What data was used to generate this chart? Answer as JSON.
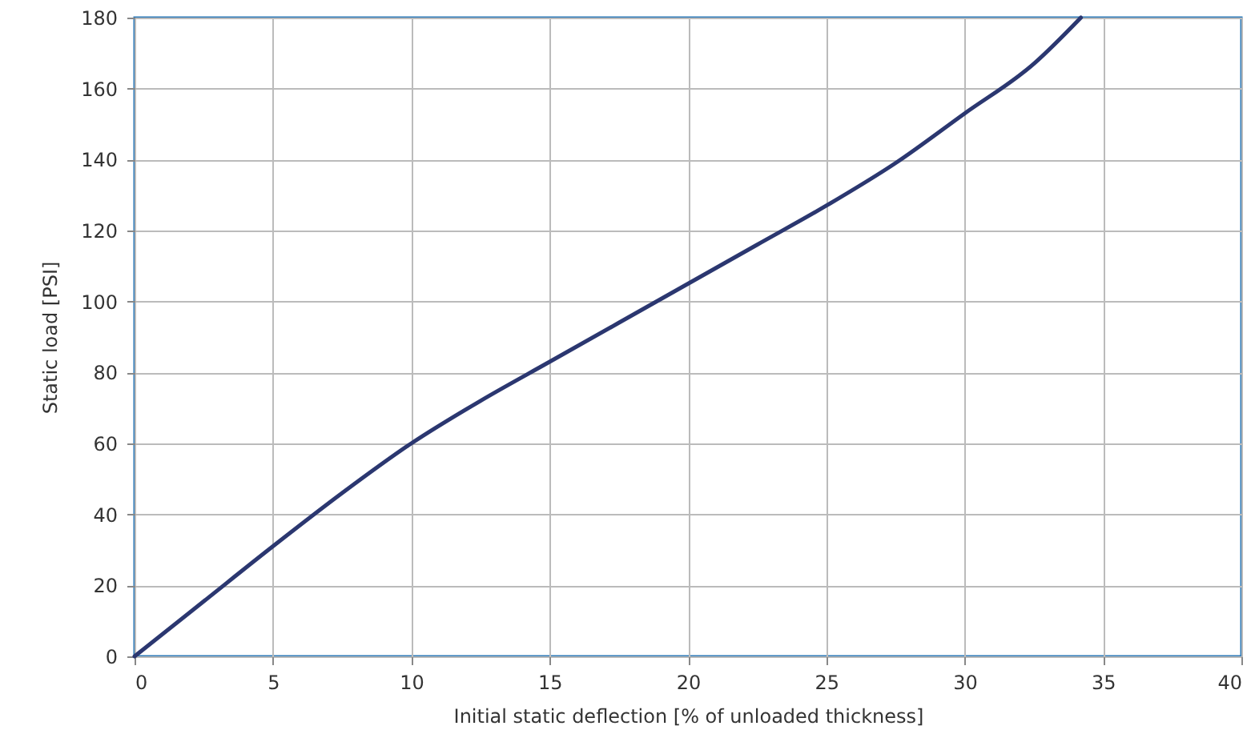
{
  "chart_data": {
    "type": "line",
    "xlabel": "Initial static deflection [% of unloaded thickness]",
    "ylabel": "Static load [PSI]",
    "x": [
      0,
      2.5,
      5,
      7.5,
      10,
      12.5,
      15,
      17.5,
      20,
      22.5,
      25,
      27.5,
      30,
      32.5,
      34.2
    ],
    "series": [
      {
        "color": "#2b3770",
        "values": [
          0,
          15.5,
          31,
          46,
          60,
          72,
          83,
          94,
          105,
          116,
          127,
          139,
          153,
          167,
          180
        ]
      }
    ],
    "xlim": [
      0,
      40
    ],
    "xticks": [
      0,
      5,
      10,
      15,
      20,
      25,
      30,
      35,
      40
    ],
    "ylim": [
      0,
      180
    ],
    "yticks": [
      0,
      20,
      40,
      60,
      80,
      100,
      120,
      140,
      160,
      180
    ],
    "grid": true,
    "line_style": "solid"
  }
}
